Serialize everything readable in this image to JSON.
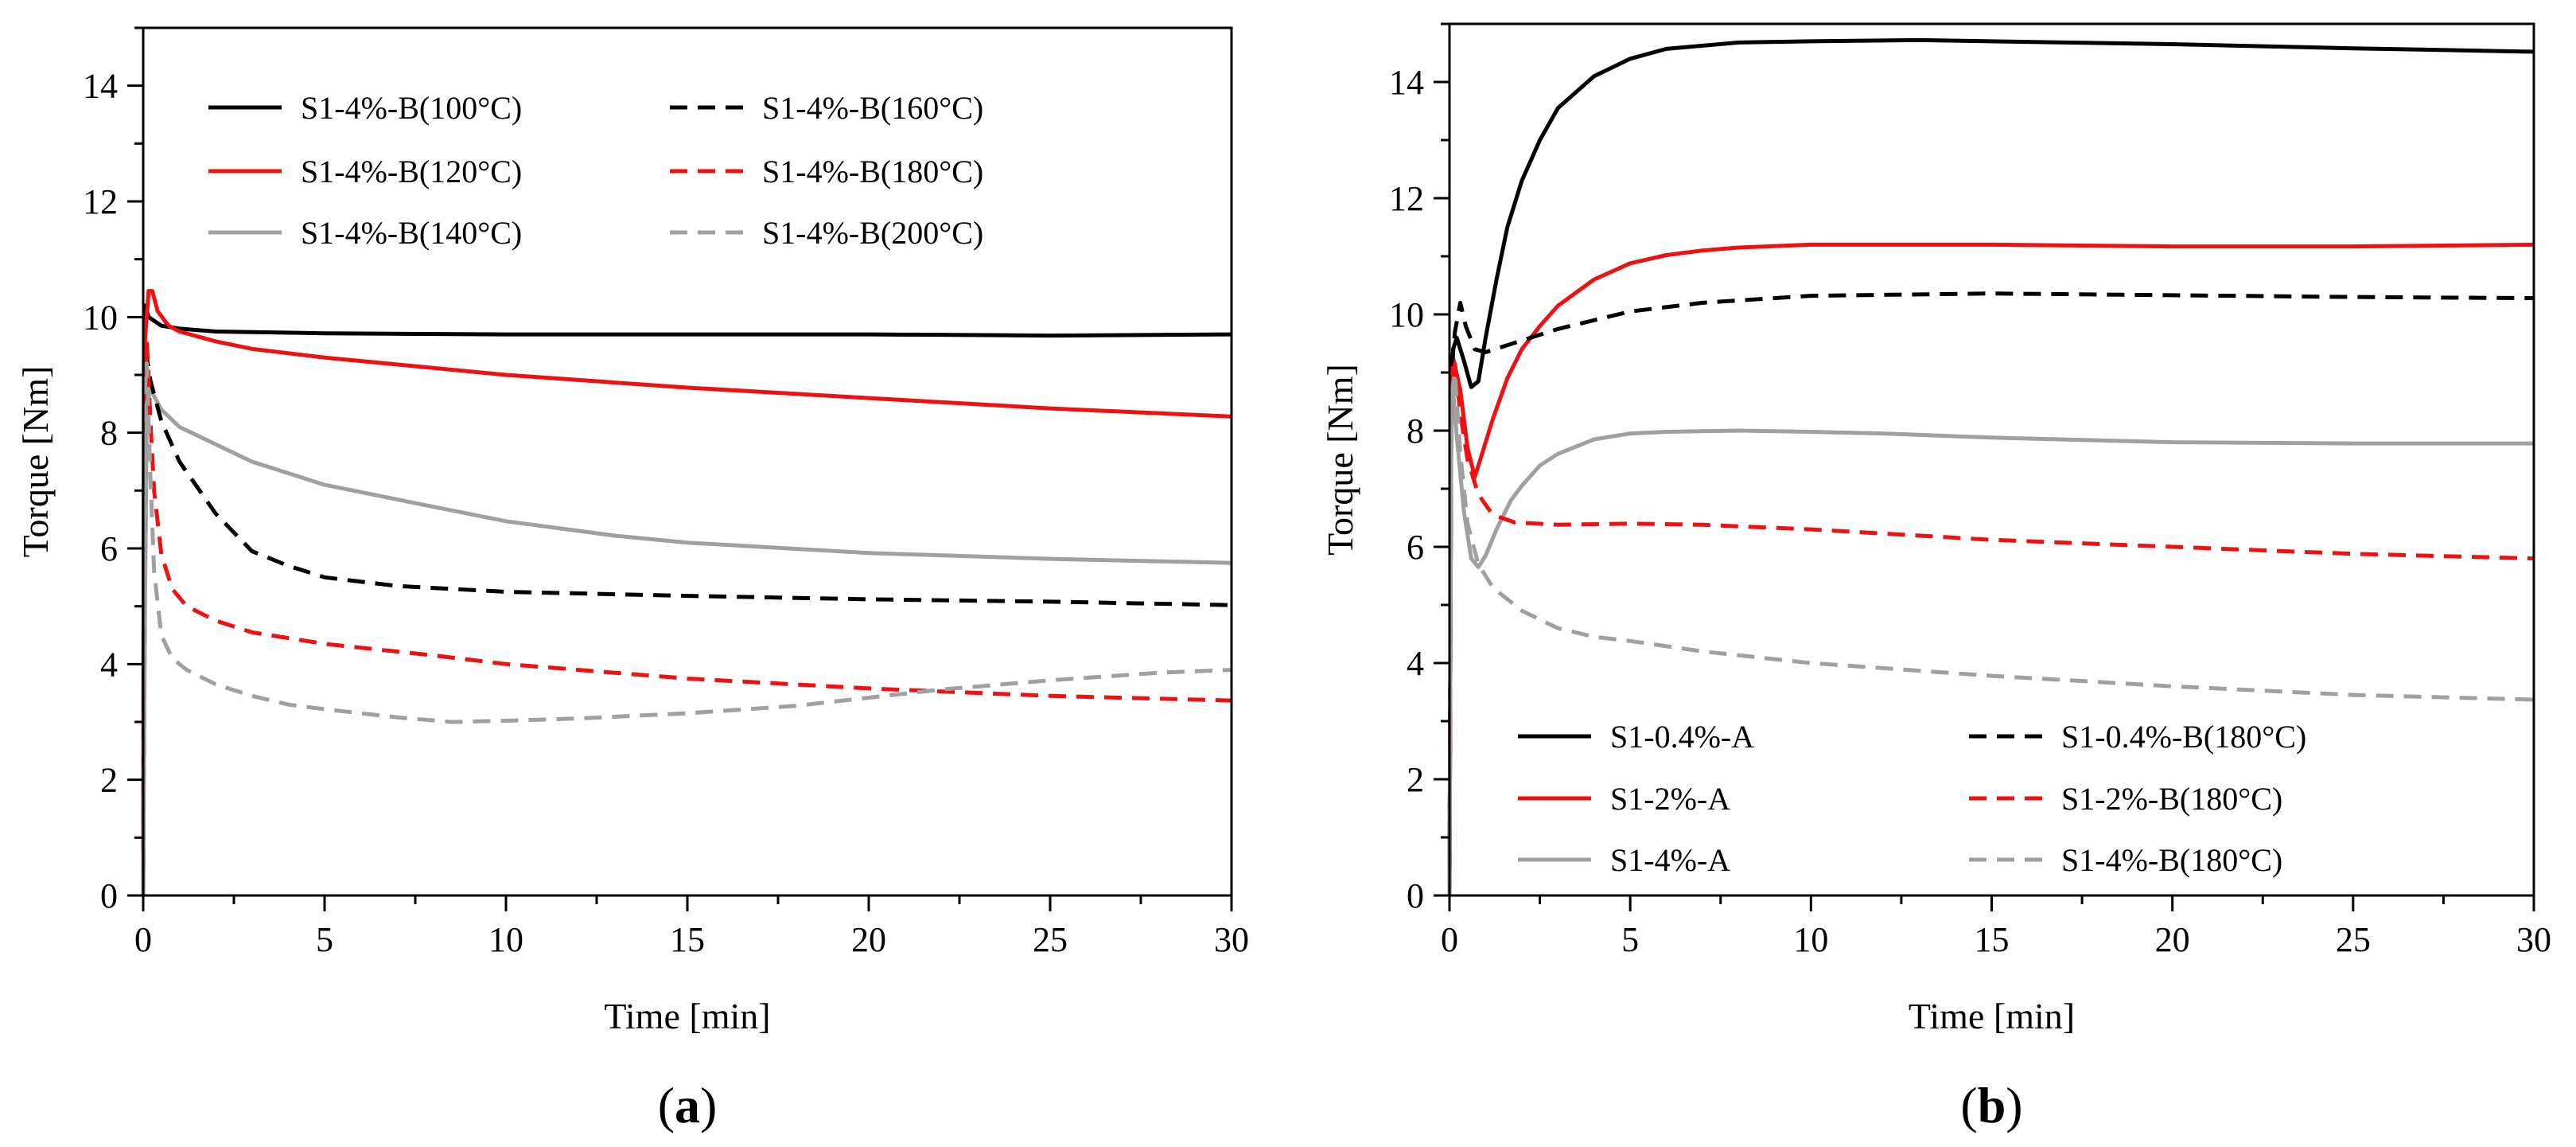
{
  "chart_data": [
    {
      "type": "line",
      "panel_label": "a",
      "xlabel": "Time [min]",
      "ylabel": "Torque [Nm]",
      "xlim": [
        0,
        30
      ],
      "ylim": [
        0,
        15
      ],
      "x_ticks": [
        0,
        5,
        10,
        15,
        20,
        25,
        30
      ],
      "y_ticks": [
        0,
        2,
        4,
        6,
        8,
        10,
        12,
        14
      ],
      "grid": false,
      "legend_position": "top",
      "series": [
        {
          "name": "S1-4%-B(100°C)",
          "color": "#000000",
          "dash": "solid",
          "points": [
            [
              0,
              0
            ],
            [
              0.02,
              9.2
            ],
            [
              0.05,
              10.2
            ],
            [
              0.15,
              10.0
            ],
            [
              0.5,
              9.85
            ],
            [
              1,
              9.8
            ],
            [
              2,
              9.75
            ],
            [
              5,
              9.72
            ],
            [
              10,
              9.7
            ],
            [
              15,
              9.7
            ],
            [
              20,
              9.7
            ],
            [
              25,
              9.68
            ],
            [
              30,
              9.7
            ]
          ]
        },
        {
          "name": "S1-4%-B(120°C)",
          "color": "#ee1111",
          "dash": "solid",
          "points": [
            [
              0,
              0
            ],
            [
              0.05,
              9.6
            ],
            [
              0.15,
              10.45
            ],
            [
              0.25,
              10.45
            ],
            [
              0.4,
              10.1
            ],
            [
              0.7,
              9.85
            ],
            [
              1,
              9.75
            ],
            [
              2,
              9.58
            ],
            [
              3,
              9.45
            ],
            [
              5,
              9.3
            ],
            [
              7,
              9.18
            ],
            [
              10,
              9.0
            ],
            [
              15,
              8.78
            ],
            [
              20,
              8.6
            ],
            [
              25,
              8.42
            ],
            [
              30,
              8.28
            ]
          ]
        },
        {
          "name": "S1-4%-B(140°C)",
          "color": "#a0a0a0",
          "dash": "solid",
          "points": [
            [
              0,
              0
            ],
            [
              0.05,
              5.0
            ],
            [
              0.1,
              8.5
            ],
            [
              0.2,
              8.75
            ],
            [
              0.5,
              8.4
            ],
            [
              1,
              8.1
            ],
            [
              2,
              7.8
            ],
            [
              3,
              7.5
            ],
            [
              5,
              7.1
            ],
            [
              8,
              6.72
            ],
            [
              10,
              6.47
            ],
            [
              13,
              6.22
            ],
            [
              15,
              6.1
            ],
            [
              20,
              5.92
            ],
            [
              25,
              5.82
            ],
            [
              30,
              5.75
            ]
          ]
        },
        {
          "name": "S1-4%-B(160°C)",
          "color": "#000000",
          "dash": "dashed",
          "points": [
            [
              0,
              0
            ],
            [
              0.05,
              8.7
            ],
            [
              0.1,
              9.3
            ],
            [
              0.2,
              8.9
            ],
            [
              0.5,
              8.2
            ],
            [
              1,
              7.5
            ],
            [
              2,
              6.6
            ],
            [
              3,
              5.95
            ],
            [
              4,
              5.7
            ],
            [
              5,
              5.5
            ],
            [
              7,
              5.35
            ],
            [
              10,
              5.25
            ],
            [
              15,
              5.18
            ],
            [
              20,
              5.12
            ],
            [
              25,
              5.08
            ],
            [
              30,
              5.02
            ]
          ]
        },
        {
          "name": "S1-4%-B(180°C)",
          "color": "#ee1111",
          "dash": "dashed",
          "points": [
            [
              0,
              0
            ],
            [
              0.05,
              8.8
            ],
            [
              0.1,
              9.6
            ],
            [
              0.2,
              8.2
            ],
            [
              0.3,
              7.0
            ],
            [
              0.5,
              5.9
            ],
            [
              0.8,
              5.3
            ],
            [
              1.2,
              5.0
            ],
            [
              2,
              4.75
            ],
            [
              3,
              4.55
            ],
            [
              5,
              4.35
            ],
            [
              8,
              4.15
            ],
            [
              10,
              4.0
            ],
            [
              15,
              3.75
            ],
            [
              20,
              3.58
            ],
            [
              25,
              3.45
            ],
            [
              30,
              3.37
            ]
          ]
        },
        {
          "name": "S1-4%-B(200°C)",
          "color": "#a0a0a0",
          "dash": "dashed",
          "points": [
            [
              0,
              0
            ],
            [
              0.05,
              8.8
            ],
            [
              0.1,
              9.2
            ],
            [
              0.2,
              7.2
            ],
            [
              0.3,
              5.6
            ],
            [
              0.5,
              4.5
            ],
            [
              0.8,
              4.1
            ],
            [
              1.2,
              3.9
            ],
            [
              2,
              3.65
            ],
            [
              3,
              3.45
            ],
            [
              4,
              3.3
            ],
            [
              5,
              3.22
            ],
            [
              7,
              3.08
            ],
            [
              8.5,
              3.0
            ],
            [
              10,
              3.02
            ],
            [
              12,
              3.06
            ],
            [
              15,
              3.15
            ],
            [
              18,
              3.28
            ],
            [
              20,
              3.42
            ],
            [
              22,
              3.56
            ],
            [
              25,
              3.72
            ],
            [
              28,
              3.85
            ],
            [
              30,
              3.9
            ]
          ]
        }
      ]
    },
    {
      "type": "line",
      "panel_label": "b",
      "xlabel": "Time [min]",
      "ylabel": "Torque [Nm]",
      "xlim": [
        0,
        30
      ],
      "ylim": [
        0,
        15
      ],
      "x_ticks": [
        0,
        5,
        10,
        15,
        20,
        25,
        30
      ],
      "y_ticks": [
        0,
        2,
        4,
        6,
        8,
        10,
        12,
        14
      ],
      "grid": false,
      "legend_position": "bottom",
      "series": [
        {
          "name": "S1-0.4%-A",
          "color": "#000000",
          "dash": "solid",
          "points": [
            [
              0,
              0
            ],
            [
              0.05,
              8.5
            ],
            [
              0.1,
              9.4
            ],
            [
              0.2,
              9.6
            ],
            [
              0.4,
              9.2
            ],
            [
              0.6,
              8.75
            ],
            [
              0.8,
              8.85
            ],
            [
              1,
              9.6
            ],
            [
              1.3,
              10.6
            ],
            [
              1.6,
              11.5
            ],
            [
              2,
              12.3
            ],
            [
              2.5,
              13.0
            ],
            [
              3,
              13.55
            ],
            [
              4,
              14.1
            ],
            [
              5,
              14.4
            ],
            [
              6,
              14.57
            ],
            [
              8,
              14.68
            ],
            [
              10,
              14.7
            ],
            [
              13,
              14.72
            ],
            [
              15,
              14.7
            ],
            [
              20,
              14.65
            ],
            [
              25,
              14.58
            ],
            [
              30,
              14.52
            ]
          ]
        },
        {
          "name": "S1-2%-A",
          "color": "#ee1111",
          "dash": "solid",
          "points": [
            [
              0,
              0
            ],
            [
              0.05,
              8.6
            ],
            [
              0.1,
              9.25
            ],
            [
              0.3,
              8.7
            ],
            [
              0.5,
              7.7
            ],
            [
              0.7,
              7.2
            ],
            [
              0.9,
              7.6
            ],
            [
              1.2,
              8.2
            ],
            [
              1.6,
              8.9
            ],
            [
              2,
              9.4
            ],
            [
              2.5,
              9.8
            ],
            [
              3,
              10.15
            ],
            [
              4,
              10.6
            ],
            [
              5,
              10.88
            ],
            [
              6,
              11.02
            ],
            [
              7,
              11.1
            ],
            [
              8,
              11.15
            ],
            [
              10,
              11.2
            ],
            [
              15,
              11.2
            ],
            [
              20,
              11.17
            ],
            [
              25,
              11.17
            ],
            [
              30,
              11.2
            ]
          ]
        },
        {
          "name": "S1-4%-A",
          "color": "#a0a0a0",
          "dash": "solid",
          "points": [
            [
              0,
              0
            ],
            [
              0.05,
              8.2
            ],
            [
              0.1,
              8.7
            ],
            [
              0.2,
              7.9
            ],
            [
              0.4,
              6.6
            ],
            [
              0.6,
              5.8
            ],
            [
              0.8,
              5.65
            ],
            [
              1,
              5.85
            ],
            [
              1.3,
              6.3
            ],
            [
              1.7,
              6.8
            ],
            [
              2,
              7.05
            ],
            [
              2.5,
              7.4
            ],
            [
              3,
              7.6
            ],
            [
              4,
              7.85
            ],
            [
              5,
              7.95
            ],
            [
              6,
              7.98
            ],
            [
              8,
              8.0
            ],
            [
              10,
              7.98
            ],
            [
              12,
              7.95
            ],
            [
              15,
              7.88
            ],
            [
              20,
              7.8
            ],
            [
              25,
              7.78
            ],
            [
              30,
              7.78
            ]
          ]
        },
        {
          "name": "S1-0.4%-B(180°C)",
          "color": "#000000",
          "dash": "dashed",
          "points": [
            [
              0,
              0
            ],
            [
              0.05,
              9.0
            ],
            [
              0.15,
              9.7
            ],
            [
              0.3,
              10.2
            ],
            [
              0.45,
              9.8
            ],
            [
              0.7,
              9.4
            ],
            [
              1,
              9.35
            ],
            [
              1.5,
              9.45
            ],
            [
              2,
              9.55
            ],
            [
              3,
              9.75
            ],
            [
              5,
              10.05
            ],
            [
              7,
              10.2
            ],
            [
              10,
              10.32
            ],
            [
              15,
              10.36
            ],
            [
              20,
              10.33
            ],
            [
              25,
              10.3
            ],
            [
              30,
              10.28
            ]
          ]
        },
        {
          "name": "S1-2%-B(180°C)",
          "color": "#ee1111",
          "dash": "dashed",
          "points": [
            [
              0,
              0
            ],
            [
              0.05,
              8.7
            ],
            [
              0.15,
              9.15
            ],
            [
              0.3,
              8.3
            ],
            [
              0.5,
              7.5
            ],
            [
              0.8,
              6.9
            ],
            [
              1.2,
              6.55
            ],
            [
              1.8,
              6.42
            ],
            [
              3,
              6.38
            ],
            [
              5,
              6.4
            ],
            [
              7,
              6.38
            ],
            [
              10,
              6.3
            ],
            [
              15,
              6.12
            ],
            [
              20,
              6.0
            ],
            [
              25,
              5.88
            ],
            [
              30,
              5.8
            ]
          ]
        },
        {
          "name": "S1-4%-B(180°C)",
          "color": "#a0a0a0",
          "dash": "dashed",
          "points": [
            [
              0,
              0
            ],
            [
              0.05,
              8.6
            ],
            [
              0.15,
              9.0
            ],
            [
              0.3,
              7.6
            ],
            [
              0.5,
              6.4
            ],
            [
              0.8,
              5.7
            ],
            [
              1.2,
              5.3
            ],
            [
              2,
              4.9
            ],
            [
              3,
              4.6
            ],
            [
              4,
              4.45
            ],
            [
              5,
              4.38
            ],
            [
              7,
              4.2
            ],
            [
              10,
              4.0
            ],
            [
              15,
              3.78
            ],
            [
              20,
              3.6
            ],
            [
              25,
              3.45
            ],
            [
              30,
              3.37
            ]
          ]
        }
      ]
    }
  ]
}
